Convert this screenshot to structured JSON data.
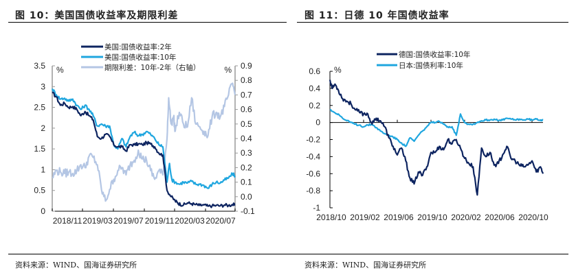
{
  "figures": [
    {
      "title": "图 10：美国国债收益率及期限利差",
      "source": "资料来源：WIND、国海证券研究所"
    },
    {
      "title": "图 11：日德 10 年国债收益率",
      "source": "资料来源：WIND、国海证券研究所"
    }
  ],
  "chart_data": [
    {
      "type": "line",
      "title": "美国国债收益率及期限利差",
      "x_tick_labels": [
        "2018/11",
        "2019/03",
        "2019/07",
        "2019/11",
        "2020/03",
        "2020/07"
      ],
      "y_left": {
        "unit": "%",
        "ylim": [
          0,
          3.5
        ],
        "ticks": [
          "0",
          "0.5",
          "1",
          "1.5",
          "2",
          "2.5",
          "3",
          "3.5"
        ]
      },
      "y_right": {
        "unit": "%",
        "ylim": [
          -0.1,
          0.9
        ],
        "ticks": [
          "-0.1",
          "0.0",
          "0.1",
          "0.2",
          "0.3",
          "0.4",
          "0.5",
          "0.6",
          "0.7",
          "0.8",
          "0.9"
        ]
      },
      "legend_position": "top-center",
      "x_range": [
        "2018/11",
        "2020/09"
      ],
      "series": [
        {
          "name": "美国:国债收益率:2年",
          "color": "#0d2460",
          "axis": "left",
          "x": [
            0,
            0.5,
            1,
            1.5,
            2,
            2.5,
            3,
            3.5,
            4,
            4.5,
            5,
            5.5,
            6,
            6.5,
            7,
            7.5,
            8,
            8.5,
            9,
            9.5,
            10,
            10.5,
            11,
            11.5,
            12,
            12.5,
            13,
            13.5,
            14,
            14.5,
            15,
            15.3,
            15.6,
            16,
            16.5,
            17,
            17.5,
            18,
            18.5,
            19,
            19.5,
            20,
            20.5,
            21,
            21.5,
            22,
            22.3
          ],
          "values": [
            2.85,
            2.75,
            2.55,
            2.6,
            2.5,
            2.52,
            2.45,
            2.3,
            2.4,
            2.3,
            2.2,
            1.8,
            1.75,
            1.85,
            1.8,
            1.6,
            1.55,
            1.55,
            1.45,
            1.6,
            1.6,
            1.62,
            1.6,
            1.65,
            1.62,
            1.55,
            1.4,
            1.35,
            0.5,
            0.35,
            0.25,
            0.2,
            0.17,
            0.15,
            0.2,
            0.18,
            0.16,
            0.14,
            0.15,
            0.12,
            0.13,
            0.14,
            0.13,
            0.15,
            0.14,
            0.16,
            0.15
          ]
        },
        {
          "name": "美国:国债收益率:10年",
          "color": "#1fa6df",
          "axis": "left",
          "x": [
            0,
            0.5,
            1,
            1.5,
            2,
            2.5,
            3,
            3.5,
            4,
            4.5,
            5,
            5.5,
            6,
            6.5,
            7,
            7.5,
            8,
            8.5,
            9,
            9.5,
            10,
            10.5,
            11,
            11.5,
            12,
            12.5,
            13,
            13.5,
            14,
            14.3,
            14.6,
            15,
            15.5,
            16,
            16.5,
            17,
            17.5,
            18,
            18.5,
            19,
            19.5,
            20,
            20.5,
            21,
            21.5,
            22,
            22.3
          ],
          "values": [
            2.95,
            2.8,
            2.7,
            2.72,
            2.65,
            2.7,
            2.55,
            2.45,
            2.55,
            2.45,
            2.3,
            2.05,
            2.1,
            2.05,
            2.05,
            1.6,
            1.5,
            1.75,
            1.55,
            1.8,
            1.9,
            1.82,
            1.85,
            1.92,
            1.85,
            1.75,
            1.6,
            1.55,
            0.7,
            1.15,
            0.75,
            0.7,
            0.65,
            0.7,
            0.68,
            0.72,
            0.65,
            0.65,
            0.62,
            0.55,
            0.65,
            0.7,
            0.68,
            0.75,
            0.8,
            0.9,
            0.85
          ]
        },
        {
          "name": "期限利差：10年-2年（右轴）",
          "color": "#b4c6e4",
          "axis": "right",
          "x": [
            0,
            0.5,
            1,
            1.5,
            2,
            2.5,
            3,
            3.5,
            4,
            4.5,
            5,
            5.5,
            6,
            6.5,
            7,
            7.5,
            8,
            8.5,
            9,
            9.5,
            10,
            10.5,
            11,
            11.5,
            12,
            12.5,
            13,
            13.5,
            14,
            14.2,
            14.5,
            14.8,
            15,
            15.5,
            16,
            16.5,
            17,
            17.5,
            18,
            18.5,
            19,
            19.5,
            20,
            20.5,
            21,
            21.5,
            22,
            22.3
          ],
          "values": [
            0.13,
            0.18,
            0.17,
            0.16,
            0.17,
            0.16,
            0.18,
            0.22,
            0.2,
            0.28,
            0.27,
            0.22,
            0.05,
            -0.03,
            0.05,
            0.12,
            0.18,
            0.2,
            0.15,
            0.22,
            0.25,
            0.32,
            0.26,
            0.25,
            0.18,
            0.12,
            0.18,
            0.15,
            0.4,
            0.68,
            0.5,
            0.55,
            0.45,
            0.58,
            0.5,
            0.48,
            0.68,
            0.5,
            0.48,
            0.45,
            0.42,
            0.55,
            0.58,
            0.55,
            0.62,
            0.7,
            0.78,
            0.7
          ]
        }
      ]
    },
    {
      "type": "line",
      "title": "日德10年国债收益率",
      "x_tick_labels": [
        "2018/10",
        "2019/02",
        "2019/06",
        "2019/10",
        "2020/02",
        "2020/06",
        "2020/10"
      ],
      "y": {
        "unit": "%",
        "ylim": [
          -1,
          0.6
        ],
        "ticks": [
          "0.6",
          "0.4",
          "0.2",
          "0",
          "-0.2",
          "-0.4",
          "-0.6",
          "-0.8",
          "-1"
        ]
      },
      "legend_position": "top-center",
      "x_range": [
        "2018/10",
        "2020/11"
      ],
      "series": [
        {
          "name": "德国:国债收益率:10年",
          "color": "#0d2460",
          "x": [
            0,
            0.3,
            0.6,
            1,
            1.5,
            2,
            2.5,
            3,
            3.5,
            4,
            4.5,
            5,
            5.5,
            6,
            6.5,
            7,
            7.5,
            8,
            8.5,
            9,
            9.5,
            10,
            10.5,
            11,
            11.5,
            12,
            12.5,
            13,
            13.5,
            14,
            14.5,
            15,
            15.5,
            16,
            16.5,
            17,
            17.5,
            18,
            18.5,
            19,
            19.5,
            20,
            20.5,
            21,
            21.5,
            22,
            22.5,
            23,
            23.5,
            24,
            24.5,
            25,
            25.3
          ],
          "values": [
            0.5,
            0.4,
            0.45,
            0.38,
            0.28,
            0.25,
            0.22,
            0.15,
            0.12,
            0.1,
            0.1,
            -0.02,
            0.05,
            0.02,
            -0.05,
            -0.18,
            -0.28,
            -0.38,
            -0.3,
            -0.45,
            -0.65,
            -0.72,
            -0.58,
            -0.62,
            -0.52,
            -0.35,
            -0.35,
            -0.28,
            -0.32,
            -0.2,
            -0.25,
            -0.2,
            -0.3,
            -0.42,
            -0.48,
            -0.52,
            -0.85,
            -0.3,
            -0.4,
            -0.35,
            -0.5,
            -0.48,
            -0.38,
            -0.28,
            -0.42,
            -0.45,
            -0.5,
            -0.52,
            -0.5,
            -0.45,
            -0.58,
            -0.52,
            -0.6
          ]
        },
        {
          "name": "日本:国债利率:10年",
          "color": "#1fa6df",
          "x": [
            0,
            0.5,
            1,
            1.5,
            2,
            2.5,
            3,
            3.5,
            4,
            4.5,
            5,
            5.5,
            6,
            6.5,
            7,
            7.5,
            8,
            8.5,
            9,
            9.5,
            10,
            10.5,
            11,
            11.5,
            12,
            12.5,
            13,
            13.5,
            14,
            14.5,
            15,
            15.5,
            16,
            16.5,
            17,
            17.5,
            18,
            18.5,
            19,
            19.5,
            20,
            20.5,
            21,
            21.5,
            22,
            22.5,
            23,
            23.5,
            24,
            24.5,
            25,
            25.3
          ],
          "values": [
            0.15,
            0.12,
            0.1,
            0.05,
            0.02,
            0.0,
            -0.02,
            -0.03,
            -0.05,
            -0.03,
            -0.02,
            -0.06,
            -0.1,
            -0.13,
            -0.15,
            -0.17,
            -0.2,
            -0.24,
            -0.28,
            -0.18,
            -0.22,
            -0.15,
            -0.1,
            -0.05,
            0.0,
            0.0,
            0.01,
            -0.02,
            -0.05,
            -0.05,
            -0.15,
            0.1,
            0.0,
            -0.02,
            -0.02,
            0.0,
            0.02,
            0.03,
            0.03,
            0.04,
            0.02,
            0.03,
            0.05,
            0.04,
            0.03,
            0.04,
            0.03,
            0.04,
            0.03,
            0.04,
            0.03,
            0.03
          ]
        }
      ]
    }
  ]
}
